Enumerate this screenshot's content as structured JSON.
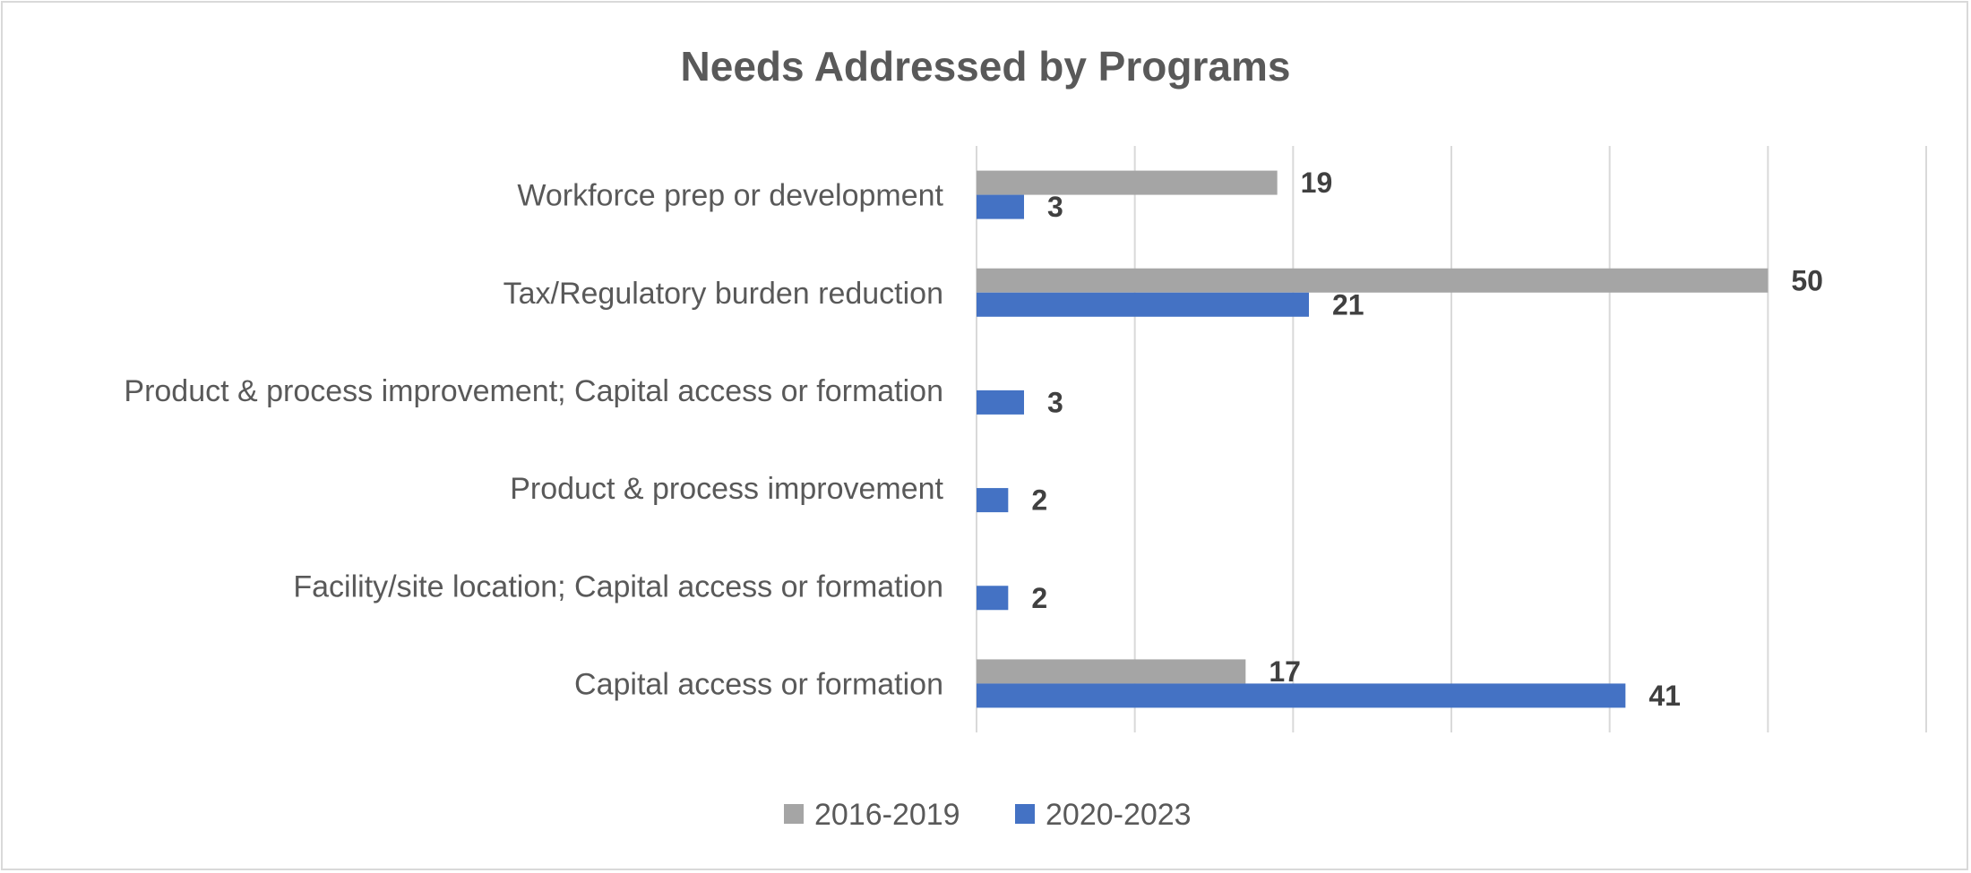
{
  "chart_data": {
    "type": "bar",
    "orientation": "horizontal",
    "title": "Needs Addressed by Programs",
    "xlabel": "",
    "ylabel": "",
    "categories": [
      "Workforce prep or development",
      "Tax/Regulatory burden reduction",
      "Product & process improvement; Capital access or formation",
      "Product & process improvement",
      "Facility/site location; Capital access or formation",
      "Capital access or formation"
    ],
    "series": [
      {
        "name": "2016-2019",
        "color": "#a5a5a5",
        "values": [
          19,
          50,
          null,
          null,
          null,
          17
        ]
      },
      {
        "name": "2020-2023",
        "color": "#4472c4",
        "values": [
          3,
          21,
          3,
          2,
          2,
          41
        ]
      }
    ],
    "xlim": [
      0,
      60
    ],
    "x_gridlines": [
      0,
      10,
      20,
      30,
      40,
      50,
      60
    ],
    "tick_labels_visible": false,
    "grid": true,
    "legend_position": "bottom",
    "data_labels": true
  }
}
